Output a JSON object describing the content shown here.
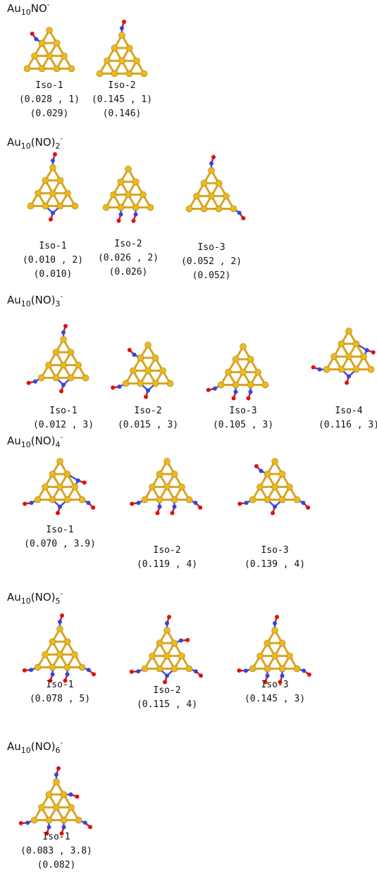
{
  "sections": [
    {
      "formula": {
        "metal": "Au",
        "metal_count": "10",
        "ligand": "NO",
        "charge": "-"
      },
      "isomers": [
        {
          "name": "Iso-1",
          "lines": [
            "(0.028 , 1)",
            "(0.029)"
          ]
        },
        {
          "name": "Iso-2",
          "lines": [
            "(0.145 , 1)",
            "(0.146)"
          ]
        }
      ]
    },
    {
      "formula": {
        "metal": "Au",
        "metal_count": "10",
        "ligand": "(NO)",
        "ligand_count": "2",
        "charge": "-"
      },
      "isomers": [
        {
          "name": "Iso-1",
          "lines": [
            "(0.010 , 2)",
            "(0.010)"
          ]
        },
        {
          "name": "Iso-2",
          "lines": [
            "(0.026 , 2)",
            "(0.026)"
          ]
        },
        {
          "name": "Iso-3",
          "lines": [
            "(0.052 , 2)",
            "(0.052)"
          ]
        }
      ]
    },
    {
      "formula": {
        "metal": "Au",
        "metal_count": "10",
        "ligand": "(NO)",
        "ligand_count": "3",
        "charge": "-"
      },
      "isomers": [
        {
          "name": "Iso-1",
          "lines": [
            "(0.012 , 3)"
          ]
        },
        {
          "name": "Iso-2",
          "lines": [
            "(0.015 , 3)"
          ]
        },
        {
          "name": "Iso-3",
          "lines": [
            "(0.105 , 3)"
          ]
        },
        {
          "name": "Iso-4",
          "lines": [
            "(0.116 , 3)"
          ]
        }
      ]
    },
    {
      "formula": {
        "metal": "Au",
        "metal_count": "10",
        "ligand": "(NO)",
        "ligand_count": "4",
        "charge": "-"
      },
      "isomers": [
        {
          "name": "Iso-1",
          "lines": [
            "(0.070 , 3.9)"
          ]
        },
        {
          "name": "Iso-2",
          "lines": [
            "(0.119 , 4)"
          ]
        },
        {
          "name": "Iso-3",
          "lines": [
            "(0.139 , 4)"
          ]
        }
      ]
    },
    {
      "formula": {
        "metal": "Au",
        "metal_count": "10",
        "ligand": "(NO)",
        "ligand_count": "5",
        "charge": "-"
      },
      "isomers": [
        {
          "name": "Iso-1",
          "lines": [
            "(0.078 , 5)"
          ]
        },
        {
          "name": "Iso-2",
          "lines": [
            "(0.115 , 4)"
          ]
        },
        {
          "name": "Iso-3",
          "lines": [
            "(0.145 , 3)"
          ]
        }
      ]
    },
    {
      "formula": {
        "metal": "Au",
        "metal_count": "10",
        "ligand": "(NO)",
        "ligand_count": "6",
        "charge": "-"
      },
      "isomers": [
        {
          "name": "Iso-1",
          "lines": [
            "(0.083 , 3.8)",
            "(0.082)"
          ]
        }
      ]
    }
  ]
}
